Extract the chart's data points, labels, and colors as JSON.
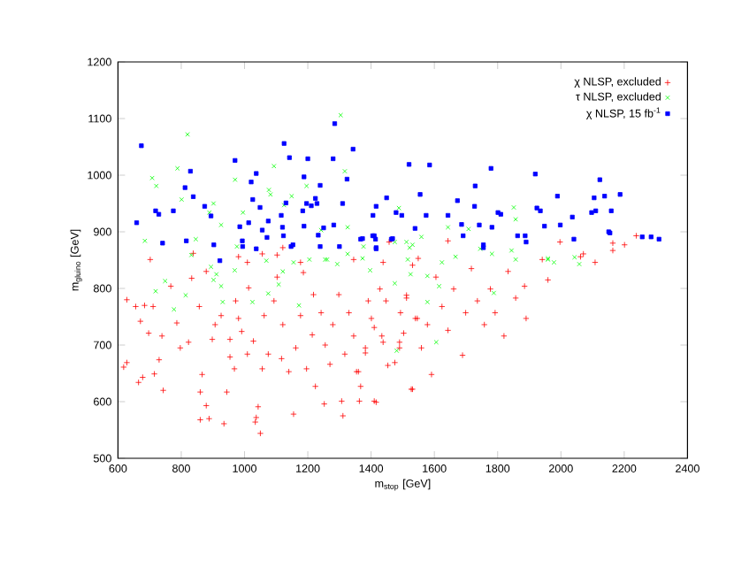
{
  "chart_data": {
    "type": "scatter",
    "xlabel": "m$_{stop}$ [GeV]",
    "ylabel": "m$_{gluino}$ [GeV]",
    "xlim": [
      600,
      2400
    ],
    "ylim": [
      500,
      1200
    ],
    "xticks": [
      600,
      800,
      1000,
      1200,
      1400,
      1600,
      1800,
      2000,
      2200,
      2400
    ],
    "yticks": [
      500,
      600,
      700,
      800,
      900,
      1000,
      1100,
      1200
    ],
    "grid": false,
    "legend": "top right",
    "series": [
      {
        "name": "χ NLSP, excluded",
        "color": "#ff0000",
        "marker": "cross",
        "x": [
          628,
          656,
          671,
          697,
          618,
          628,
          665,
          678,
          715,
          730,
          743,
          739,
          786,
          797,
          823,
          833,
          857,
          866,
          860,
          879,
          888,
          860,
          898,
          907,
          926,
          935,
          954,
          954,
          944,
          968,
          972,
          981,
          991,
          1009,
          1013,
          1028,
          1037,
          1043,
          1050,
          1034,
          1056,
          1062,
          1075,
          1093,
          1103,
          1117,
          1121,
          1140,
          1155,
          1162,
          1177,
          1186,
          1196,
          1214,
          1218,
          1224,
          1242,
          1252,
          1255,
          1270,
          1279,
          1298,
          1307,
          1311,
          1317,
          1330,
          1345,
          1354,
          1382,
          1391,
          1410,
          1410,
          1428,
          1438,
          1453,
          1490,
          1493,
          1512,
          1531,
          1540,
          711,
          684,
          767,
          879,
          1363,
          1367,
          1360,
          1382,
          1416,
          1401,
          1434,
          1447,
          1475,
          1490,
          1503,
          1512,
          1527,
          1531,
          1546,
          1559,
          1578,
          1591,
          1605,
          1624,
          1643,
          1661,
          1689,
          1699,
          1717,
          1736,
          1758,
          1777,
          1792,
          1820,
          1833,
          1857,
          1885,
          1890,
          1941,
          1959,
          2062,
          2071,
          2108,
          2164,
          2201,
          2238,
          2164,
          1457,
          1643,
          1997,
          702,
          838,
          1009,
          1103,
          1177,
          1345,
          1438,
          1549,
          1121,
          1056,
          981
        ],
        "values": [
          780,
          768,
          742,
          721,
          661,
          669,
          634,
          643,
          649,
          674,
          620,
          716,
          739,
          695,
          705,
          818,
          768,
          648,
          617,
          593,
          570,
          568,
          710,
          736,
          752,
          561,
          710,
          679,
          617,
          658,
          778,
          747,
          724,
          684,
          801,
          707,
          572,
          591,
          544,
          564,
          658,
          752,
          684,
          778,
          820,
          676,
          736,
          653,
          578,
          695,
          752,
          828,
          658,
          718,
          789,
          627,
          757,
          596,
          700,
          666,
          736,
          789,
          601,
          575,
          684,
          757,
          716,
          653,
          695,
          778,
          601,
          731,
          799,
          705,
          664,
          705,
          757,
          783,
          622,
          747,
          768,
          770,
          804,
          830,
          601,
          627,
          653,
          686,
          599,
          747,
          716,
          778,
          669,
          695,
          721,
          788,
          622,
          841,
          747,
          695,
          736,
          648,
          820,
          768,
          726,
          799,
          682,
          757,
          835,
          778,
          736,
          799,
          757,
          716,
          830,
          783,
          804,
          747,
          851,
          815,
          856,
          861,
          846,
          867,
          877,
          893,
          880,
          882,
          884,
          882,
          851,
          862,
          846,
          859,
          846,
          851,
          846,
          853,
          872,
          861,
          856
        ]
      },
      {
        "name": "τ NLSP, excluded",
        "color": "#00ff00",
        "marker": "cross",
        "x": [
          685,
          708,
          721,
          788,
          801,
          820,
          846,
          889,
          902,
          926,
          970,
          995,
          976,
          1077,
          1082,
          1093,
          1125,
          1149,
          1196,
          1242,
          1255,
          1304,
          1317,
          1326,
          1376,
          1488,
          1512,
          1643,
          1708,
          1851,
          1857,
          1531,
          1959,
          2043,
          832,
          749,
          719,
          777,
          814,
          894,
          911,
          902,
          926,
          931,
          969,
          1025,
          1069,
          1075,
          1108,
          1121,
          1155,
          1172,
          1205,
          1261,
          1293,
          1326,
          1373,
          1397,
          1475,
          1481,
          1516,
          1525,
          1559,
          1475,
          1522,
          1578,
          1615,
          1578,
          1624,
          1667,
          1745,
          1782,
          1788,
          1844,
          1857,
          1959,
          1978,
          2058,
          1606
        ],
        "values": [
          884,
          995,
          981,
          1012,
          957,
          1072,
          887,
          934,
          950,
          912,
          992,
          934,
          874,
          974,
          966,
          1016,
          947,
          963,
          981,
          903,
          851,
          1106,
          1007,
          908,
          874,
          942,
          882,
          908,
          905,
          943,
          922,
          877,
          853,
          855,
          859,
          813,
          795,
          763,
          788,
          838,
          825,
          815,
          804,
          776,
          832,
          776,
          849,
          791,
          807,
          830,
          846,
          770,
          851,
          851,
          843,
          861,
          853,
          832,
          809,
          690,
          851,
          825,
          891,
          882,
          872,
          822,
          804,
          776,
          846,
          856,
          870,
          861,
          792,
          867,
          851,
          851,
          846,
          843,
          705
        ]
      },
      {
        "name": "χ NLSP, 15 fb$^{-1}$",
        "color": "#0000ff",
        "marker": "square",
        "x": [
          674,
          659,
          719,
          729,
          741,
          775,
          812,
          829,
          838,
          816,
          874,
          894,
          903,
          922,
          970,
          985,
          993,
          1013,
          1021,
          1037,
          1026,
          1049,
          1056,
          1075,
          1071,
          1116,
          1120,
          1125,
          1131,
          1142,
          1153,
          1188,
          1184,
          1188,
          1196,
          1200,
          1211,
          1224,
          1229,
          1233,
          1239,
          1250,
          1280,
          1285,
          1282,
          1310,
          1324,
          1343,
          1367,
          1406,
          1416,
          1414,
          1449,
          1464,
          1479,
          1497,
          1520,
          1539,
          1555,
          1410,
          1416,
          1574,
          1585,
          1643,
          1673,
          1686,
          1691,
          1729,
          1727,
          1742,
          1755,
          1779,
          1782,
          1801,
          1810,
          1863,
          1887,
          1919,
          1924,
          1935,
          1948,
          1989,
          1998,
          2036,
          2041,
          2097,
          2105,
          2110,
          2123,
          2138,
          2151,
          2159,
          2187,
          2257,
          2285,
          2310,
          994,
          1037,
          1123,
          1147,
          1239,
          1300,
          1405,
          1468,
          1373,
          1416,
          1755,
          1890,
          2155
        ],
        "values": [
          1052,
          916,
          937,
          931,
          880,
          937,
          978,
          1007,
          962,
          884,
          945,
          928,
          877,
          849,
          1026,
          909,
          884,
          916,
          988,
          1003,
          957,
          943,
          903,
          919,
          890,
          929,
          908,
          1056,
          951,
          1031,
          877,
          997,
          937,
          910,
          950,
          1029,
          946,
          959,
          950,
          894,
          982,
          907,
          1029,
          1091,
          912,
          950,
          993,
          1046,
          887,
          929,
          945,
          887,
          960,
          887,
          934,
          929,
          1019,
          906,
          966,
          893,
          870,
          929,
          1018,
          929,
          955,
          913,
          893,
          981,
          945,
          912,
          877,
          1012,
          908,
          934,
          931,
          893,
          893,
          1002,
          942,
          937,
          910,
          963,
          912,
          926,
          887,
          934,
          960,
          937,
          992,
          963,
          900,
          937,
          966,
          891,
          891,
          887,
          874,
          870,
          893,
          874,
          874,
          874,
          893,
          888,
          888,
          872,
          872,
          882,
          898
        ]
      }
    ]
  }
}
